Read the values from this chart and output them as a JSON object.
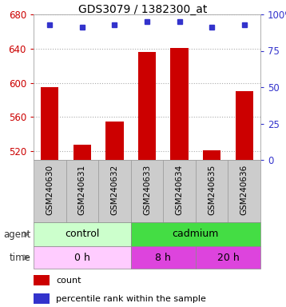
{
  "title": "GDS3079 / 1382300_at",
  "samples": [
    "GSM240630",
    "GSM240631",
    "GSM240632",
    "GSM240633",
    "GSM240634",
    "GSM240635",
    "GSM240636"
  ],
  "counts": [
    595,
    528,
    555,
    636,
    641,
    521,
    590
  ],
  "percentiles": [
    93,
    91,
    93,
    95,
    95,
    91,
    93
  ],
  "ylim_left": [
    510,
    680
  ],
  "ylim_right": [
    0,
    100
  ],
  "yticks_left": [
    520,
    560,
    600,
    640,
    680
  ],
  "yticks_right": [
    0,
    25,
    50,
    75,
    100
  ],
  "bar_color": "#cc0000",
  "dot_color": "#3333cc",
  "grid_color": "#888888",
  "agent_row": [
    {
      "label": "control",
      "start": 0,
      "end": 3,
      "color": "#ccffcc"
    },
    {
      "label": "cadmium",
      "start": 3,
      "end": 7,
      "color": "#44dd44"
    }
  ],
  "time_row": [
    {
      "label": "0 h",
      "start": 0,
      "end": 3,
      "color": "#ffccff"
    },
    {
      "label": "8 h",
      "start": 3,
      "end": 5,
      "color": "#dd44dd"
    },
    {
      "label": "20 h",
      "start": 5,
      "end": 7,
      "color": "#dd44dd"
    }
  ],
  "legend_count_color": "#cc0000",
  "legend_percentile_color": "#3333cc",
  "tick_label_color_left": "#cc0000",
  "tick_label_color_right": "#3333cc",
  "xtick_bg": "#cccccc",
  "xtick_border": "#999999",
  "fig_w": 3.58,
  "fig_h": 3.84,
  "dpi": 100
}
